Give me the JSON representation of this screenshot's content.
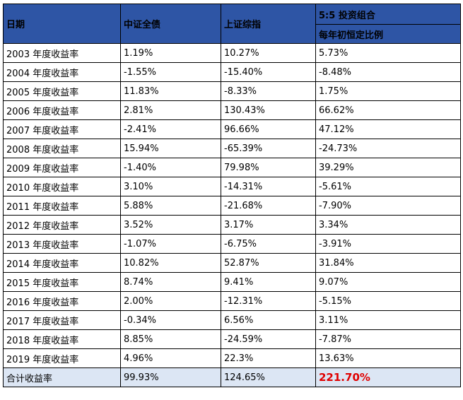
{
  "headers": {
    "date": "日期",
    "bond": "中证全债",
    "stock": "上证综指",
    "portfolio_title": "5:5 投资组合",
    "portfolio_subtitle": "每年初恒定比例"
  },
  "rows": [
    {
      "year": "2003 年度收益率",
      "bond": "1.19%",
      "stock": "10.27%",
      "portfolio": "5.73%"
    },
    {
      "year": "2004 年度收益率",
      "bond": "-1.55%",
      "stock": "-15.40%",
      "portfolio": "-8.48%"
    },
    {
      "year": "2005 年度收益率",
      "bond": "11.83%",
      "stock": "-8.33%",
      "portfolio": "1.75%"
    },
    {
      "year": "2006 年度收益率",
      "bond": "2.81%",
      "stock": "130.43%",
      "portfolio": "66.62%"
    },
    {
      "year": "2007 年度收益率",
      "bond": "-2.41%",
      "stock": "96.66%",
      "portfolio": "47.12%"
    },
    {
      "year": "2008 年度收益率",
      "bond": "15.94%",
      "stock": "-65.39%",
      "portfolio": "-24.73%"
    },
    {
      "year": "2009 年度收益率",
      "bond": "-1.40%",
      "stock": "79.98%",
      "portfolio": "39.29%"
    },
    {
      "year": "2010 年度收益率",
      "bond": "3.10%",
      "stock": "-14.31%",
      "portfolio": "-5.61%"
    },
    {
      "year": "2011 年度收益率",
      "bond": "5.88%",
      "stock": "-21.68%",
      "portfolio": "-7.90%"
    },
    {
      "year": "2012 年度收益率",
      "bond": "3.52%",
      "stock": "3.17%",
      "portfolio": "3.34%"
    },
    {
      "year": "2013 年度收益率",
      "bond": "-1.07%",
      "stock": "-6.75%",
      "portfolio": "-3.91%"
    },
    {
      "year": "2014 年度收益率",
      "bond": "10.82%",
      "stock": "52.87%",
      "portfolio": "31.84%"
    },
    {
      "year": "2015 年度收益率",
      "bond": "8.74%",
      "stock": "9.41%",
      "portfolio": "9.07%"
    },
    {
      "year": "2016 年度收益率",
      "bond": "2.00%",
      "stock": "-12.31%",
      "portfolio": "-5.15%"
    },
    {
      "year": "2017 年度收益率",
      "bond": "-0.34%",
      "stock": "6.56%",
      "portfolio": "3.11%"
    },
    {
      "year": "2018 年度收益率",
      "bond": "8.85%",
      "stock": "-24.59%",
      "portfolio": "-7.87%"
    },
    {
      "year": "2019 年度收益率",
      "bond": "4.96%",
      "stock": "22.3%",
      "portfolio": "13.63%"
    }
  ],
  "total": {
    "label": "合计收益率",
    "bond": "99.93%",
    "stock": "124.65%",
    "portfolio": "221.70%"
  },
  "colors": {
    "header_bg": "#2e55a5",
    "total_bg": "#dce6f4",
    "highlight": "#e00000"
  }
}
